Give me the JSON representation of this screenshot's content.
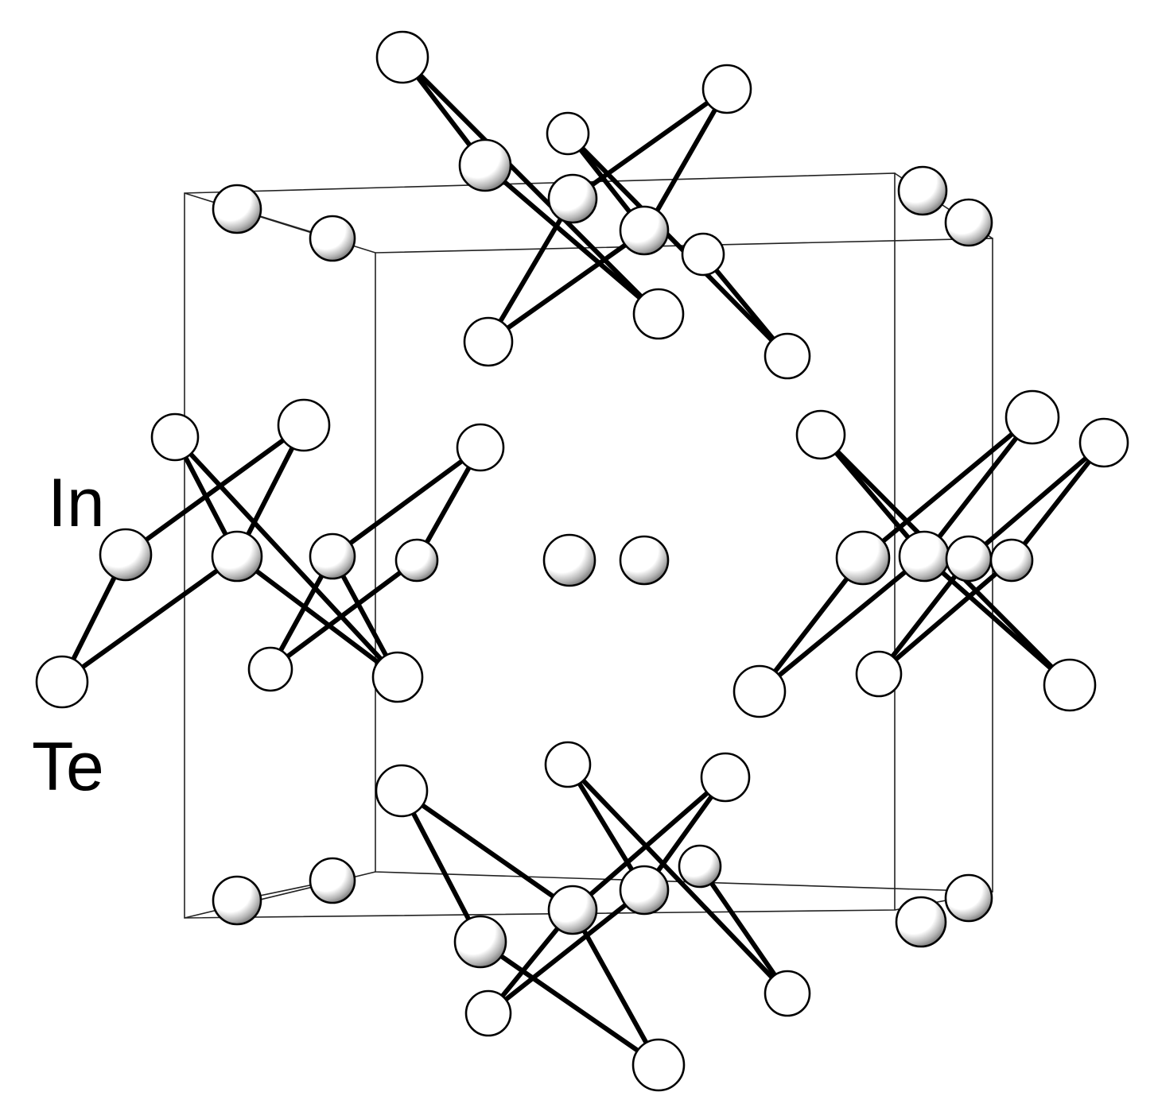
{
  "labels": {
    "indium": "In",
    "tellurium": "Te"
  },
  "colors": {
    "bond": "#000000",
    "cell_edge": "#222222",
    "atom_fill": "#ffffff",
    "in_shade": "#7a7a7a"
  }
}
